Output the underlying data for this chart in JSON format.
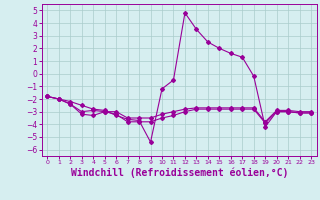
{
  "background_color": "#d6eef0",
  "grid_color": "#aacccc",
  "line_color": "#990099",
  "xlabel": "Windchill (Refroidissement éolien,°C)",
  "xlabel_fontsize": 7,
  "yticks": [
    -6,
    -5,
    -4,
    -3,
    -2,
    -1,
    0,
    1,
    2,
    3,
    4,
    5
  ],
  "xticks": [
    0,
    1,
    2,
    3,
    4,
    5,
    6,
    7,
    8,
    9,
    10,
    11,
    12,
    13,
    14,
    15,
    16,
    17,
    18,
    19,
    20,
    21,
    22,
    23
  ],
  "ylim": [
    -6.5,
    5.5
  ],
  "xlim": [
    -0.5,
    23.5
  ],
  "line1_x": [
    0,
    1,
    2,
    3,
    4,
    5,
    6,
    7,
    8,
    9,
    10,
    11,
    12,
    13,
    14,
    15,
    16,
    17,
    18,
    19,
    20,
    21,
    22,
    23
  ],
  "line1_y": [
    -1.8,
    -2.0,
    -2.2,
    -2.5,
    -2.8,
    -2.9,
    -3.3,
    -3.6,
    -3.7,
    -5.4,
    -1.2,
    -0.5,
    4.8,
    3.5,
    2.5,
    2.0,
    1.6,
    1.3,
    -0.2,
    -4.2,
    -3.0,
    -3.0,
    -3.1,
    -3.1
  ],
  "line2_x": [
    0,
    1,
    2,
    3,
    4,
    5,
    6,
    7,
    8,
    9,
    10,
    11,
    12,
    13,
    14,
    15,
    16,
    17,
    18,
    19,
    20,
    21,
    22,
    23
  ],
  "line2_y": [
    -1.8,
    -2.0,
    -2.4,
    -3.2,
    -3.3,
    -3.0,
    -3.2,
    -3.8,
    -3.8,
    -3.8,
    -3.5,
    -3.3,
    -3.0,
    -2.8,
    -2.8,
    -2.8,
    -2.8,
    -2.8,
    -2.8,
    -3.9,
    -3.0,
    -3.0,
    -3.1,
    -3.1
  ],
  "line3_x": [
    0,
    1,
    2,
    3,
    4,
    5,
    6,
    7,
    8,
    9,
    10,
    11,
    12,
    13,
    14,
    15,
    16,
    17,
    18,
    19,
    20,
    21,
    22,
    23
  ],
  "line3_y": [
    -1.8,
    -2.0,
    -2.4,
    -3.0,
    -2.9,
    -3.0,
    -3.0,
    -3.5,
    -3.5,
    -3.5,
    -3.2,
    -3.0,
    -2.8,
    -2.7,
    -2.7,
    -2.7,
    -2.7,
    -2.7,
    -2.7,
    -3.8,
    -2.9,
    -2.9,
    -3.0,
    -3.0
  ]
}
